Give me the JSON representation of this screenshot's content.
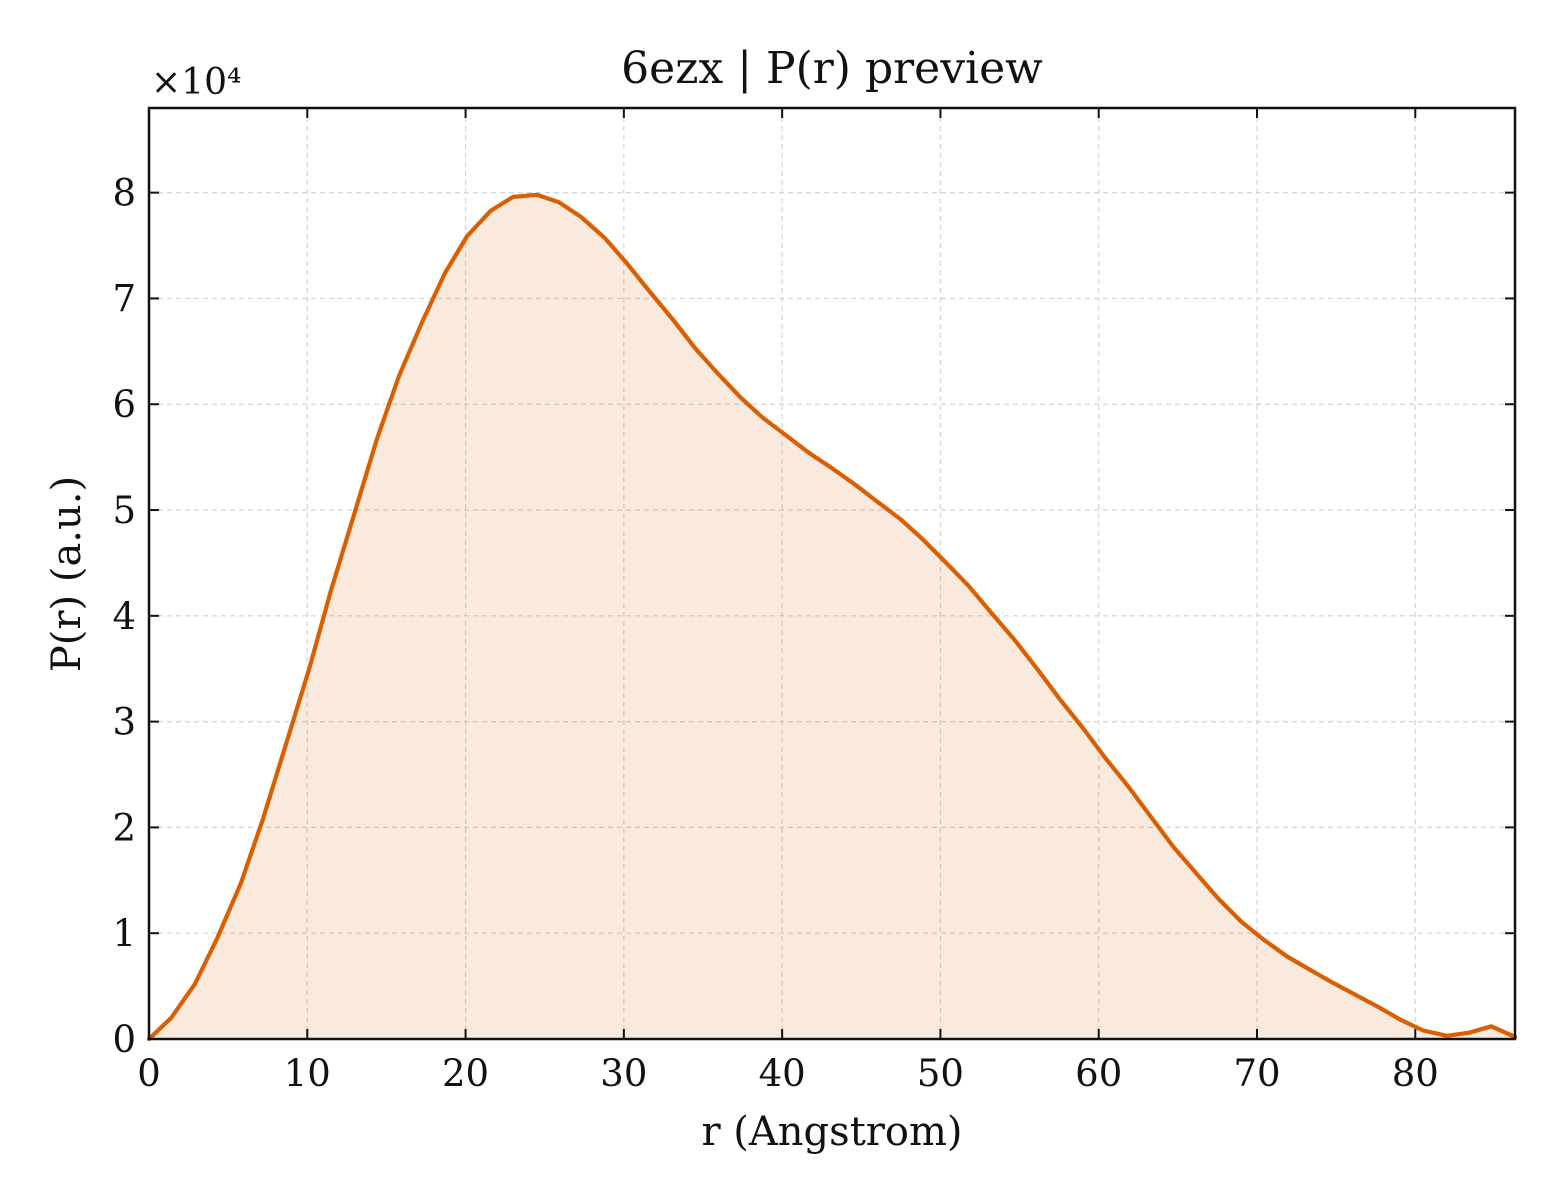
{
  "chart_data": {
    "type": "area",
    "title": "6ezx | P(r) preview",
    "xlabel": "r (Angstrom)",
    "ylabel": "P(r) (a.u.)",
    "y_offset_label": "×10⁴",
    "xlim": [
      0,
      86.3
    ],
    "ylim": [
      0,
      8.8
    ],
    "y_scale_note": "values in units of 10^4",
    "xticks": [
      0,
      10,
      20,
      30,
      40,
      50,
      60,
      70,
      80
    ],
    "yticks": [
      0,
      1,
      2,
      3,
      4,
      5,
      6,
      7,
      8
    ],
    "grid": true,
    "legend": "none",
    "series": [
      {
        "color": "#d95f02",
        "fill_color": "#d95f02",
        "fill_opacity": 0.13,
        "x": [
          0,
          1.4,
          2.9,
          4.3,
          5.8,
          7.2,
          8.6,
          10.1,
          11.5,
          13.0,
          14.4,
          15.8,
          17.3,
          18.7,
          20.1,
          21.6,
          23.0,
          24.5,
          25.9,
          27.3,
          28.8,
          30.2,
          31.6,
          33.1,
          34.5,
          36.0,
          37.4,
          38.8,
          40.3,
          41.7,
          43.2,
          44.6,
          46.0,
          47.5,
          48.9,
          50.3,
          51.8,
          53.2,
          54.7,
          56.1,
          57.5,
          59.0,
          60.4,
          61.9,
          63.3,
          64.7,
          66.2,
          67.6,
          69.0,
          70.5,
          71.9,
          73.4,
          74.8,
          76.2,
          77.7,
          79.1,
          80.5,
          82.0,
          83.4,
          84.8,
          86.3
        ],
        "values": [
          0,
          0.2,
          0.52,
          0.95,
          1.47,
          2.08,
          2.76,
          3.49,
          4.24,
          4.98,
          5.67,
          6.27,
          6.79,
          7.24,
          7.59,
          7.83,
          7.96,
          7.98,
          7.91,
          7.77,
          7.57,
          7.33,
          7.07,
          6.8,
          6.53,
          6.28,
          6.06,
          5.87,
          5.7,
          5.54,
          5.39,
          5.24,
          5.08,
          4.91,
          4.72,
          4.51,
          4.28,
          4.03,
          3.77,
          3.5,
          3.22,
          2.94,
          2.66,
          2.38,
          2.1,
          1.82,
          1.56,
          1.32,
          1.11,
          0.93,
          0.78,
          0.65,
          0.53,
          0.42,
          0.3,
          0.18,
          0.08,
          0.03,
          0.06,
          0.12,
          0.02
        ]
      }
    ]
  }
}
